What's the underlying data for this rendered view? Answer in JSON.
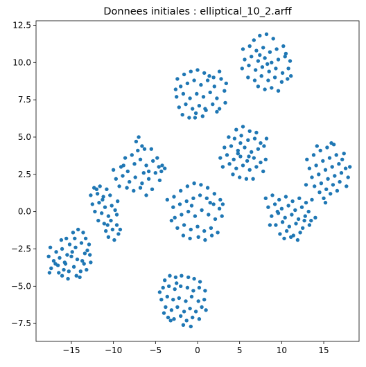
{
  "chart_data": {
    "type": "scatter",
    "title": "Donnees initiales : elliptical_10_2.arff",
    "xlabel": "",
    "ylabel": "",
    "xlim": [
      -19.2,
      19.2
    ],
    "ylim": [
      -8.7,
      12.8
    ],
    "x_ticks": [
      -15,
      -10,
      -5,
      0,
      5,
      10,
      15
    ],
    "x_tick_labels": [
      "−15",
      "−10",
      "−5",
      "0",
      "5",
      "10",
      "15"
    ],
    "y_ticks": [
      -7.5,
      -5.0,
      -2.5,
      0.0,
      2.5,
      5.0,
      7.5,
      10.0,
      12.5
    ],
    "y_tick_labels": [
      "−7.5",
      "−5.0",
      "−2.5",
      "0.0",
      "2.5",
      "5.0",
      "7.5",
      "10.0",
      "12.5"
    ],
    "grid": false,
    "marker_color": "#1f77b4",
    "points": [
      [
        -16.2,
        -1.9
      ],
      [
        -15.6,
        -1.8
      ],
      [
        -14.8,
        -1.4
      ],
      [
        -14.2,
        -1.2
      ],
      [
        -13.6,
        -1.4
      ],
      [
        -13.3,
        -1.8
      ],
      [
        -17.5,
        -2.4
      ],
      [
        -16.8,
        -2.7
      ],
      [
        -16.1,
        -2.5
      ],
      [
        -15.2,
        -2.2
      ],
      [
        -14.5,
        -2.4
      ],
      [
        -13.8,
        -2.1
      ],
      [
        -13.1,
        -2.6
      ],
      [
        -17.7,
        -3.0
      ],
      [
        -17.1,
        -3.3
      ],
      [
        -16.4,
        -3.1
      ],
      [
        -15.8,
        -3.4
      ],
      [
        -15.0,
        -3.0
      ],
      [
        -14.3,
        -3.2
      ],
      [
        -13.5,
        -3.5
      ],
      [
        -12.8,
        -2.9
      ],
      [
        -17.4,
        -3.8
      ],
      [
        -16.6,
        -3.6
      ],
      [
        -15.9,
        -3.9
      ],
      [
        -15.3,
        -4.0
      ],
      [
        -14.7,
        -3.7
      ],
      [
        -13.9,
        -4.0
      ],
      [
        -13.2,
        -3.9
      ],
      [
        -12.7,
        -3.4
      ],
      [
        -17.6,
        -4.1
      ],
      [
        -16.1,
        -4.3
      ],
      [
        -15.4,
        -4.5
      ],
      [
        -14.4,
        -4.3
      ],
      [
        -14.0,
        -4.4
      ],
      [
        -16.5,
        -4.1
      ],
      [
        -15.7,
        -3.5
      ],
      [
        -14.9,
        -2.7
      ],
      [
        -13.7,
        -3.3
      ],
      [
        -12.9,
        -2.2
      ],
      [
        -14.6,
        -1.8
      ],
      [
        -15.5,
        -2.9
      ],
      [
        -16.9,
        -3.5
      ],
      [
        -13.4,
        -2.8
      ],
      [
        -12.3,
        1.6
      ],
      [
        -11.6,
        1.7
      ],
      [
        -10.8,
        1.5
      ],
      [
        -12.7,
        1.1
      ],
      [
        -11.9,
        1.2
      ],
      [
        -11.2,
        1.0
      ],
      [
        -10.4,
        1.1
      ],
      [
        -12.5,
        0.5
      ],
      [
        -11.7,
        0.6
      ],
      [
        -11.0,
        0.3
      ],
      [
        -10.2,
        0.4
      ],
      [
        -9.5,
        0.7
      ],
      [
        -12.2,
        0.0
      ],
      [
        -11.4,
        -0.1
      ],
      [
        -10.6,
        -0.3
      ],
      [
        -9.8,
        0.1
      ],
      [
        -11.8,
        -0.6
      ],
      [
        -11.1,
        -0.8
      ],
      [
        -10.3,
        -0.6
      ],
      [
        -9.6,
        -0.9
      ],
      [
        -10.9,
        -1.3
      ],
      [
        -10.1,
        -1.2
      ],
      [
        -9.4,
        -1.5
      ],
      [
        -10.6,
        -1.7
      ],
      [
        -9.9,
        -1.9
      ],
      [
        -9.2,
        -1.2
      ],
      [
        -11.3,
        0.8
      ],
      [
        -10.7,
        -0.9
      ],
      [
        -12.0,
        1.5
      ],
      [
        -9.6,
        -0.2
      ],
      [
        -10.0,
        2.8
      ],
      [
        -9.1,
        3.0
      ],
      [
        -8.3,
        2.7
      ],
      [
        -7.5,
        3.2
      ],
      [
        -6.8,
        3.5
      ],
      [
        -6.1,
        3.1
      ],
      [
        -5.3,
        3.4
      ],
      [
        -4.6,
        3.0
      ],
      [
        -9.7,
        2.2
      ],
      [
        -8.9,
        2.4
      ],
      [
        -8.1,
        2.0
      ],
      [
        -7.4,
        2.3
      ],
      [
        -6.6,
        1.9
      ],
      [
        -5.8,
        2.2
      ],
      [
        -5.0,
        2.6
      ],
      [
        -4.3,
        2.7
      ],
      [
        -8.6,
        3.6
      ],
      [
        -7.8,
        3.8
      ],
      [
        -7.1,
        4.1
      ],
      [
        -6.3,
        4.2
      ],
      [
        -5.5,
        4.2
      ],
      [
        -4.8,
        3.6
      ],
      [
        -7.3,
        4.7
      ],
      [
        -6.6,
        4.4
      ],
      [
        -8.4,
        1.6
      ],
      [
        -7.6,
        1.4
      ],
      [
        -6.8,
        1.6
      ],
      [
        -6.1,
        1.1
      ],
      [
        -5.4,
        1.5
      ],
      [
        -9.3,
        1.7
      ],
      [
        -4.5,
        2.1
      ],
      [
        -4.2,
        3.1
      ],
      [
        -7.0,
        5.0
      ],
      [
        -5.8,
        2.7
      ],
      [
        -8.8,
        3.1
      ],
      [
        -6.4,
        2.6
      ],
      [
        -3.9,
        2.9
      ],
      [
        -3.6,
        0.8
      ],
      [
        -2.8,
        1.0
      ],
      [
        -2.0,
        1.4
      ],
      [
        -1.2,
        1.7
      ],
      [
        -0.4,
        1.9
      ],
      [
        0.4,
        1.8
      ],
      [
        1.2,
        1.6
      ],
      [
        2.0,
        1.2
      ],
      [
        2.7,
        0.8
      ],
      [
        -2.9,
        0.3
      ],
      [
        -2.1,
        0.5
      ],
      [
        -1.3,
        0.7
      ],
      [
        -0.5,
        0.9
      ],
      [
        0.3,
        1.1
      ],
      [
        1.1,
        0.9
      ],
      [
        1.9,
        0.5
      ],
      [
        2.6,
        0.2
      ],
      [
        -2.7,
        -0.4
      ],
      [
        -1.9,
        -0.2
      ],
      [
        -1.1,
        0.0
      ],
      [
        -0.3,
        -0.3
      ],
      [
        0.5,
        0.1
      ],
      [
        1.3,
        -0.2
      ],
      [
        2.1,
        -0.5
      ],
      [
        2.9,
        -0.3
      ],
      [
        -2.4,
        -1.1
      ],
      [
        -1.6,
        -0.9
      ],
      [
        -0.8,
        -1.2
      ],
      [
        0.0,
        -1.0
      ],
      [
        0.8,
        -1.3
      ],
      [
        1.6,
        -1.1
      ],
      [
        2.4,
        -1.4
      ],
      [
        -1.7,
        -1.6
      ],
      [
        -0.9,
        -1.8
      ],
      [
        0.1,
        -1.7
      ],
      [
        0.9,
        -1.9
      ],
      [
        1.7,
        -1.6
      ],
      [
        3.0,
        0.5
      ],
      [
        -3.1,
        -0.6
      ],
      [
        -0.7,
        0.4
      ],
      [
        1.5,
        0.6
      ],
      [
        -4.5,
        -5.4
      ],
      [
        -3.9,
        -4.6
      ],
      [
        -3.3,
        -4.3
      ],
      [
        -2.6,
        -4.4
      ],
      [
        -1.9,
        -4.3
      ],
      [
        -1.1,
        -4.4
      ],
      [
        -0.4,
        -4.5
      ],
      [
        0.3,
        -4.7
      ],
      [
        -4.1,
        -5.1
      ],
      [
        -3.4,
        -5.0
      ],
      [
        -2.7,
        -5.2
      ],
      [
        -2.0,
        -5.0
      ],
      [
        -1.2,
        -5.1
      ],
      [
        -0.5,
        -5.3
      ],
      [
        0.2,
        -5.1
      ],
      [
        0.9,
        -5.3
      ],
      [
        -4.3,
        -5.9
      ],
      [
        -3.6,
        -5.7
      ],
      [
        -2.9,
        -5.9
      ],
      [
        -2.2,
        -5.8
      ],
      [
        -1.4,
        -6.0
      ],
      [
        -0.7,
        -5.7
      ],
      [
        0.1,
        -6.0
      ],
      [
        0.8,
        -5.9
      ],
      [
        -3.8,
        -6.4
      ],
      [
        -3.1,
        -6.6
      ],
      [
        -2.4,
        -6.4
      ],
      [
        -1.6,
        -6.7
      ],
      [
        -0.9,
        -6.5
      ],
      [
        -0.2,
        -6.7
      ],
      [
        0.5,
        -6.4
      ],
      [
        -3.5,
        -7.1
      ],
      [
        -2.8,
        -7.2
      ],
      [
        -2.0,
        -7.0
      ],
      [
        -1.3,
        -7.3
      ],
      [
        -0.6,
        -7.1
      ],
      [
        0.2,
        -7.2
      ],
      [
        -1.7,
        -7.6
      ],
      [
        -0.8,
        -7.7
      ],
      [
        -3.2,
        -7.3
      ],
      [
        1.0,
        -6.6
      ],
      [
        -4.0,
        -6.8
      ],
      [
        -2.5,
        -4.8
      ],
      [
        -2.4,
        8.9
      ],
      [
        -1.6,
        9.2
      ],
      [
        -0.8,
        9.4
      ],
      [
        0.0,
        9.5
      ],
      [
        0.8,
        9.3
      ],
      [
        2.6,
        9.4
      ],
      [
        -2.0,
        8.4
      ],
      [
        -1.2,
        8.6
      ],
      [
        -0.4,
        8.8
      ],
      [
        0.4,
        8.5
      ],
      [
        1.2,
        8.8
      ],
      [
        2.0,
        8.4
      ],
      [
        2.8,
        8.9
      ],
      [
        -2.5,
        7.7
      ],
      [
        -1.7,
        7.9
      ],
      [
        -0.9,
        7.6
      ],
      [
        -0.1,
        7.9
      ],
      [
        0.7,
        7.7
      ],
      [
        1.5,
        8.0
      ],
      [
        2.3,
        7.6
      ],
      [
        3.2,
        8.1
      ],
      [
        -2.2,
        7.0
      ],
      [
        -1.4,
        7.2
      ],
      [
        -0.6,
        6.9
      ],
      [
        0.2,
        7.1
      ],
      [
        1.0,
        6.8
      ],
      [
        1.8,
        7.2
      ],
      [
        2.6,
        6.9
      ],
      [
        3.3,
        7.3
      ],
      [
        -1.8,
        6.5
      ],
      [
        -1.0,
        6.3
      ],
      [
        -0.2,
        6.6
      ],
      [
        0.6,
        6.4
      ],
      [
        2.3,
        6.7
      ],
      [
        -0.3,
        6.3
      ],
      [
        1.4,
        9.1
      ],
      [
        3.4,
        8.6
      ],
      [
        -2.6,
        8.2
      ],
      [
        0.9,
        6.9
      ],
      [
        1.9,
        9.0
      ],
      [
        4.6,
        5.5
      ],
      [
        5.4,
        5.7
      ],
      [
        6.2,
        5.4
      ],
      [
        7.0,
        5.3
      ],
      [
        3.7,
        5.0
      ],
      [
        4.4,
        4.9
      ],
      [
        5.2,
        5.1
      ],
      [
        6.0,
        4.8
      ],
      [
        6.8,
        4.9
      ],
      [
        7.5,
        4.6
      ],
      [
        3.2,
        4.3
      ],
      [
        4.0,
        4.4
      ],
      [
        4.8,
        4.1
      ],
      [
        5.6,
        4.3
      ],
      [
        6.4,
        4.0
      ],
      [
        7.2,
        4.2
      ],
      [
        7.9,
        4.4
      ],
      [
        2.7,
        3.6
      ],
      [
        3.5,
        3.8
      ],
      [
        4.3,
        3.5
      ],
      [
        5.1,
        3.7
      ],
      [
        5.9,
        3.4
      ],
      [
        6.7,
        3.6
      ],
      [
        7.5,
        3.3
      ],
      [
        8.1,
        3.5
      ],
      [
        3.0,
        3.0
      ],
      [
        3.8,
        3.2
      ],
      [
        4.6,
        2.9
      ],
      [
        5.4,
        3.1
      ],
      [
        6.2,
        2.8
      ],
      [
        7.0,
        3.0
      ],
      [
        7.8,
        2.7
      ],
      [
        4.2,
        2.5
      ],
      [
        5.0,
        2.3
      ],
      [
        5.8,
        2.2
      ],
      [
        6.6,
        2.2
      ],
      [
        8.2,
        4.9
      ],
      [
        5.1,
        4.6
      ],
      [
        4.8,
        3.9
      ],
      [
        6.1,
        3.7
      ],
      [
        6.7,
        11.5
      ],
      [
        7.4,
        11.8
      ],
      [
        8.2,
        11.9
      ],
      [
        9.0,
        11.6
      ],
      [
        5.4,
        10.9
      ],
      [
        6.2,
        11.1
      ],
      [
        7.0,
        10.8
      ],
      [
        7.8,
        11.0
      ],
      [
        8.6,
        10.7
      ],
      [
        9.4,
        10.9
      ],
      [
        10.2,
        11.1
      ],
      [
        5.6,
        10.2
      ],
      [
        6.4,
        10.4
      ],
      [
        7.2,
        10.1
      ],
      [
        8.0,
        10.3
      ],
      [
        8.8,
        10.0
      ],
      [
        9.6,
        10.2
      ],
      [
        10.4,
        10.4
      ],
      [
        11.0,
        10.1
      ],
      [
        5.3,
        9.6
      ],
      [
        6.1,
        9.8
      ],
      [
        6.9,
        9.5
      ],
      [
        7.7,
        9.7
      ],
      [
        8.5,
        9.4
      ],
      [
        9.3,
        9.6
      ],
      [
        10.1,
        9.3
      ],
      [
        10.8,
        9.6
      ],
      [
        6.0,
        9.0
      ],
      [
        6.8,
        8.8
      ],
      [
        7.6,
        9.1
      ],
      [
        8.4,
        8.8
      ],
      [
        9.2,
        9.0
      ],
      [
        10.0,
        8.7
      ],
      [
        10.7,
        8.9
      ],
      [
        7.2,
        8.4
      ],
      [
        8.0,
        8.2
      ],
      [
        8.8,
        8.3
      ],
      [
        9.6,
        8.1
      ],
      [
        10.5,
        10.6
      ],
      [
        11.1,
        9.1
      ],
      [
        7.4,
        10.5
      ],
      [
        8.3,
        9.9
      ],
      [
        8.1,
        0.9
      ],
      [
        8.9,
        1.1
      ],
      [
        9.7,
        0.8
      ],
      [
        10.5,
        1.0
      ],
      [
        11.3,
        0.7
      ],
      [
        12.1,
        0.9
      ],
      [
        12.9,
        0.6
      ],
      [
        8.4,
        0.3
      ],
      [
        9.2,
        0.5
      ],
      [
        10.0,
        0.2
      ],
      [
        10.8,
        0.4
      ],
      [
        11.6,
        0.1
      ],
      [
        12.4,
        0.3
      ],
      [
        13.2,
        0.0
      ],
      [
        8.8,
        -0.3
      ],
      [
        9.6,
        -0.1
      ],
      [
        10.4,
        -0.4
      ],
      [
        11.2,
        -0.2
      ],
      [
        12.0,
        -0.5
      ],
      [
        12.8,
        -0.3
      ],
      [
        13.5,
        -0.6
      ],
      [
        9.3,
        -0.9
      ],
      [
        10.1,
        -0.7
      ],
      [
        10.9,
        -1.0
      ],
      [
        11.7,
        -0.8
      ],
      [
        12.5,
        -1.1
      ],
      [
        13.3,
        -0.9
      ],
      [
        9.8,
        -1.5
      ],
      [
        10.6,
        -1.3
      ],
      [
        11.4,
        -1.6
      ],
      [
        12.2,
        -1.4
      ],
      [
        10.3,
        -1.8
      ],
      [
        11.1,
        -1.7
      ],
      [
        11.9,
        -1.9
      ],
      [
        13.6,
        0.8
      ],
      [
        14.0,
        -0.4
      ],
      [
        8.6,
        -0.9
      ],
      [
        9.5,
        0.0
      ],
      [
        12.7,
        -0.6
      ],
      [
        13.0,
        3.5
      ],
      [
        13.8,
        3.8
      ],
      [
        14.6,
        4.1
      ],
      [
        15.4,
        4.3
      ],
      [
        16.2,
        4.5
      ],
      [
        13.3,
        2.9
      ],
      [
        14.1,
        3.1
      ],
      [
        14.9,
        3.4
      ],
      [
        15.7,
        3.6
      ],
      [
        16.5,
        3.8
      ],
      [
        17.2,
        3.5
      ],
      [
        13.6,
        2.3
      ],
      [
        14.4,
        2.5
      ],
      [
        15.2,
        2.8
      ],
      [
        16.0,
        3.0
      ],
      [
        16.8,
        3.2
      ],
      [
        17.6,
        2.9
      ],
      [
        13.9,
        1.7
      ],
      [
        14.7,
        1.9
      ],
      [
        15.5,
        2.2
      ],
      [
        16.3,
        2.4
      ],
      [
        17.1,
        2.6
      ],
      [
        17.9,
        2.3
      ],
      [
        14.5,
        1.3
      ],
      [
        15.3,
        1.5
      ],
      [
        16.1,
        1.8
      ],
      [
        16.9,
        2.0
      ],
      [
        17.7,
        1.7
      ],
      [
        15.0,
        0.9
      ],
      [
        15.8,
        1.2
      ],
      [
        16.6,
        1.4
      ],
      [
        15.2,
        0.6
      ],
      [
        18.1,
        3.0
      ],
      [
        12.9,
        1.8
      ],
      [
        14.2,
        4.4
      ],
      [
        15.9,
        4.6
      ],
      [
        17.4,
        3.9
      ]
    ]
  }
}
